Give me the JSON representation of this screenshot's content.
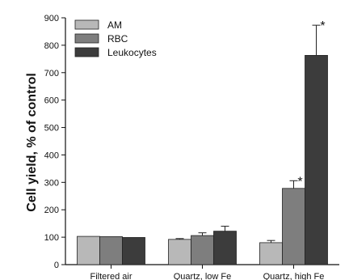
{
  "chart_data": {
    "type": "bar",
    "ylabel": "Cell yield, % of control",
    "ylim": [
      0,
      900
    ],
    "yticks": [
      0,
      100,
      200,
      300,
      400,
      500,
      600,
      700,
      800,
      900
    ],
    "grid": false,
    "legend_position": "top-left",
    "categories": [
      "Filtered air",
      "Quartz, low Fe",
      "Quartz, high Fe"
    ],
    "series": [
      {
        "name": "AM",
        "color": "#b8b8b8",
        "values": [
          103,
          92,
          80
        ],
        "errors": [
          0,
          3,
          8
        ],
        "significant": [
          false,
          false,
          false
        ]
      },
      {
        "name": "RBC",
        "color": "#7e7e7e",
        "values": [
          102,
          106,
          278
        ],
        "errors": [
          0,
          10,
          28
        ],
        "significant": [
          false,
          false,
          true
        ]
      },
      {
        "name": "Leukocytes",
        "color": "#3c3c3c",
        "values": [
          99,
          122,
          763
        ],
        "errors": [
          0,
          18,
          110
        ],
        "significant": [
          false,
          false,
          true
        ]
      }
    ],
    "significance_marker": "*"
  }
}
